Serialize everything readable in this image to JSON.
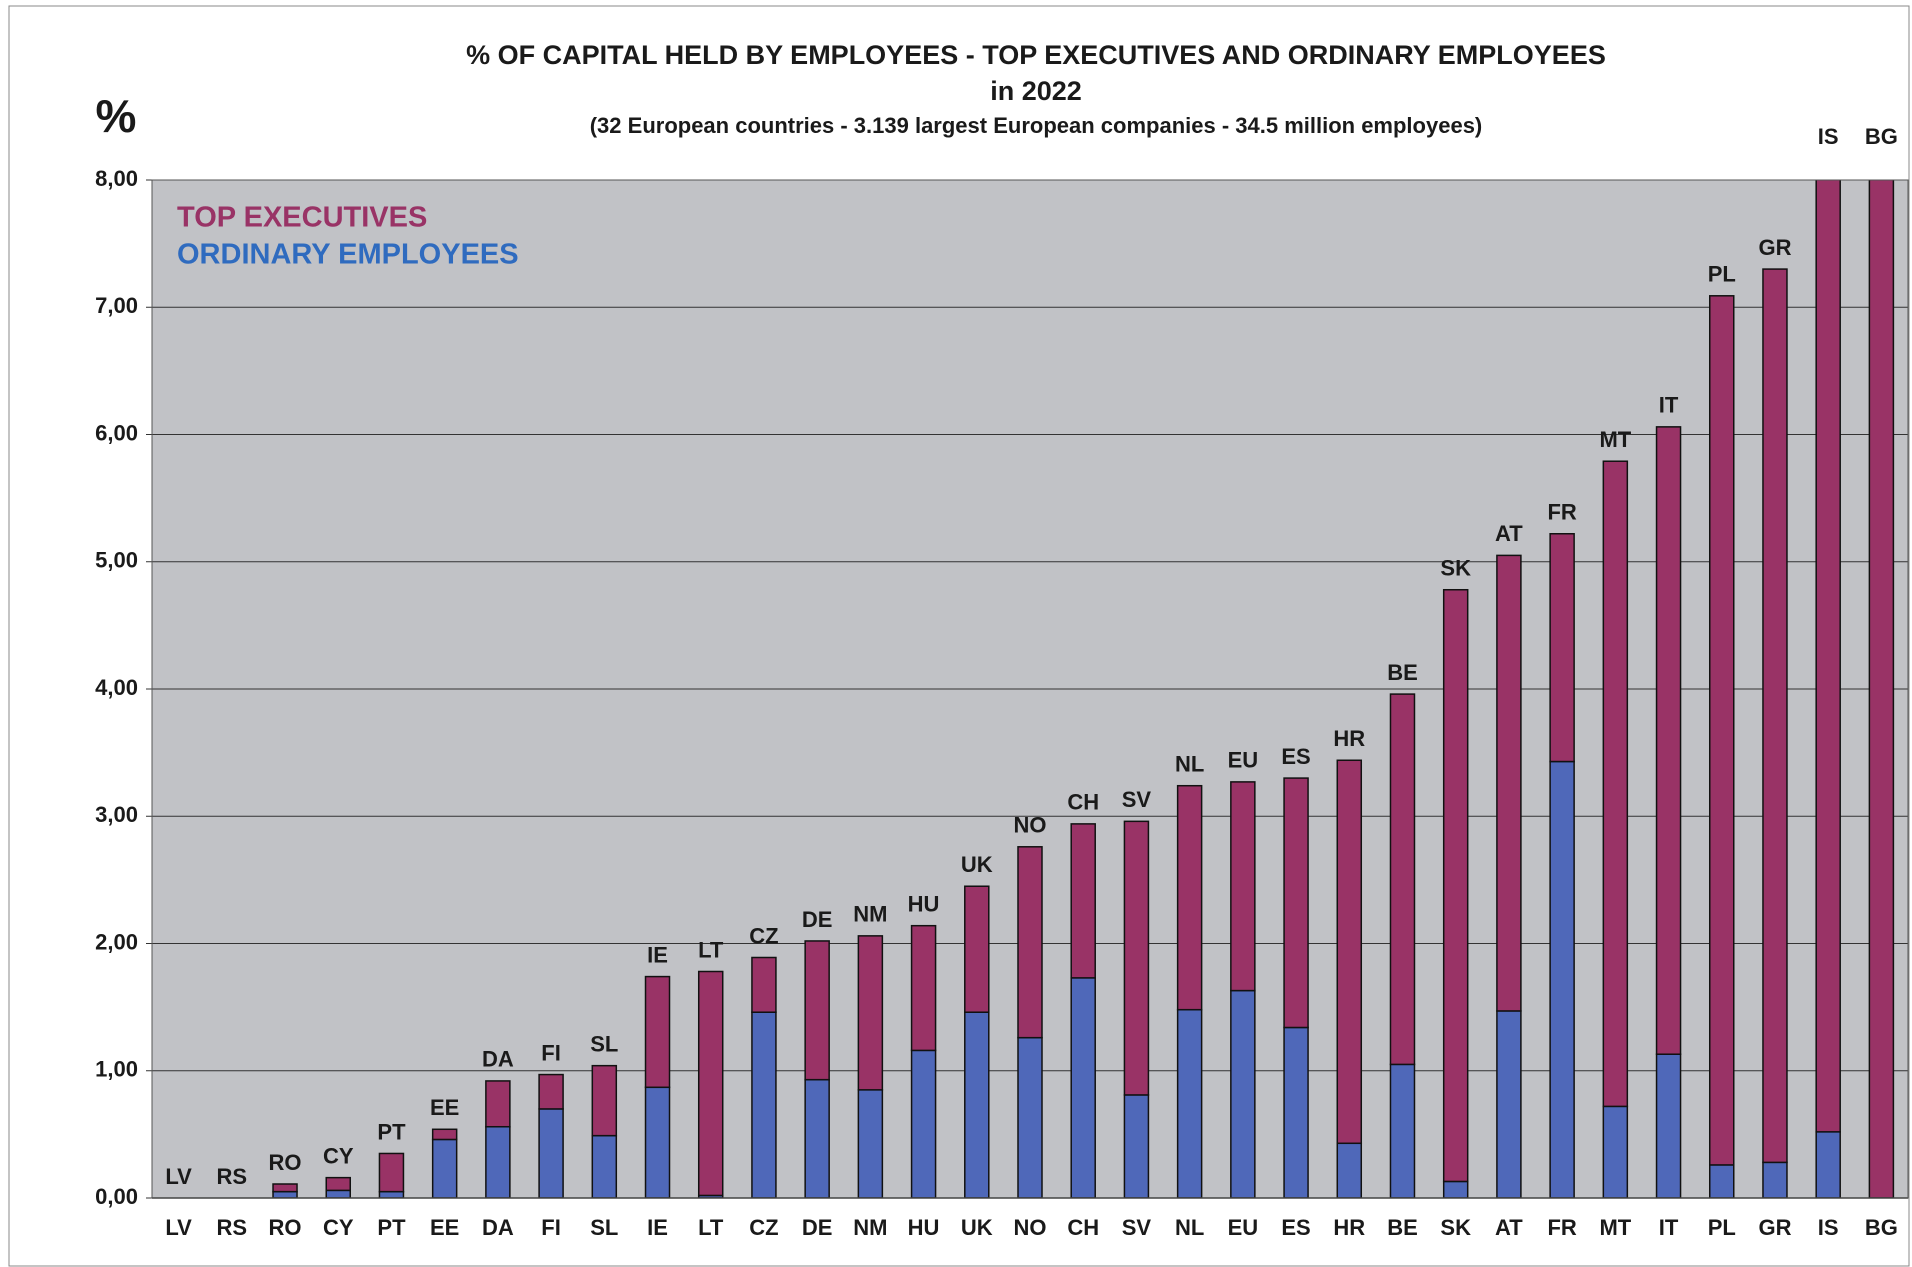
{
  "chart_data": {
    "type": "stacked-bar",
    "title": "% OF CAPITAL HELD BY EMPLOYEES - TOP EXECUTIVES AND ORDINARY EMPLOYEES",
    "subtitle": "in 2022",
    "subtitle2": "(32 European countries - 3.139 largest European companies - 34.5 million employees)",
    "y_label": "%",
    "categories": [
      "LV",
      "RS",
      "RO",
      "CY",
      "PT",
      "EE",
      "DA",
      "FI",
      "SL",
      "IE",
      "LT",
      "CZ",
      "DE",
      "NM",
      "HU",
      "UK",
      "NO",
      "CH",
      "SV",
      "NL",
      "EU",
      "ES",
      "HR",
      "BE",
      "SK",
      "AT",
      "FR",
      "MT",
      "IT",
      "PL",
      "GR",
      "IS",
      "BG"
    ],
    "series": [
      {
        "name": "ORDINARY EMPLOYEES",
        "color": "#4f68b9",
        "legend_color": "#2f6bbf",
        "values": [
          0,
          0,
          0.05,
          0.06,
          0.05,
          0.46,
          0.56,
          0.7,
          0.49,
          0.87,
          0.02,
          1.46,
          0.93,
          0.85,
          1.16,
          1.46,
          1.26,
          1.73,
          0.81,
          1.48,
          1.63,
          1.34,
          0.43,
          1.05,
          0.13,
          1.47,
          3.43,
          0.72,
          1.13,
          0.26,
          0.28,
          0.52,
          0
        ]
      },
      {
        "name": "TOP EXECUTIVES",
        "color": "#993366",
        "legend_color": "#993366",
        "values": [
          0,
          0,
          0.06,
          0.1,
          0.3,
          0.08,
          0.36,
          0.27,
          0.55,
          0.87,
          1.76,
          0.43,
          1.09,
          1.21,
          0.98,
          0.99,
          1.5,
          1.21,
          2.15,
          1.76,
          1.64,
          1.96,
          3.01,
          2.91,
          4.65,
          3.58,
          1.79,
          5.07,
          4.93,
          6.83,
          7.02,
          7.78,
          8.5
        ]
      }
    ],
    "ylim": [
      0,
      8
    ],
    "yticks": [
      {
        "value": 0,
        "label": "0,00"
      },
      {
        "value": 1,
        "label": "1,00"
      },
      {
        "value": 2,
        "label": "2,00"
      },
      {
        "value": 3,
        "label": "3,00"
      },
      {
        "value": 4,
        "label": "4,00"
      },
      {
        "value": 5,
        "label": "5,00"
      },
      {
        "value": 6,
        "label": "6,00"
      },
      {
        "value": 7,
        "label": "7,00"
      },
      {
        "value": 8,
        "label": "8,00"
      }
    ],
    "grid": true,
    "background": "#c1c2c6"
  }
}
